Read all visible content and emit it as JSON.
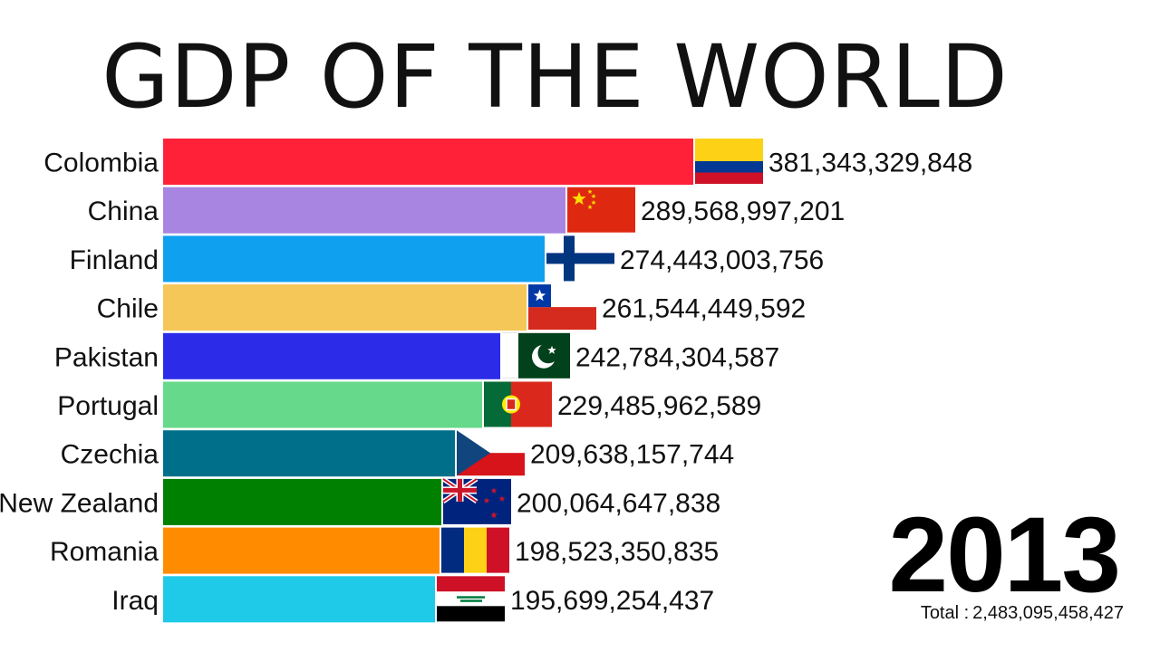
{
  "chart_data": {
    "type": "bar",
    "orientation": "horizontal",
    "title": "GDP OF THE WORLD",
    "year": "2013",
    "total_label": "Total :",
    "total_value": "2,483,095,458,427",
    "categories": [
      "Colombia",
      "China",
      "Finland",
      "Chile",
      "Pakistan",
      "Portugal",
      "Czechia",
      "New Zealand",
      "Romania",
      "Iraq"
    ],
    "values": [
      381343329848,
      289568997201,
      274443003756,
      261544449592,
      242784304587,
      229485962589,
      209638157744,
      200064647838,
      198523350835,
      195699254437
    ],
    "value_labels": [
      "381,343,329,848",
      "289,568,997,201",
      "274,443,003,756",
      "261,544,449,592",
      "242,784,304,587",
      "229,485,962,589",
      "209,638,157,744",
      "200,064,647,838",
      "198,523,350,835",
      "195,699,254,437"
    ],
    "colors": [
      "#ff2138",
      "#a885e0",
      "#10a0f0",
      "#f5c658",
      "#2b2be8",
      "#66d98b",
      "#00708a",
      "#008000",
      "#ff8c00",
      "#1ecae8"
    ],
    "flags": [
      "flag-colombia-icon",
      "flag-china-icon",
      "flag-finland-icon",
      "flag-chile-icon",
      "flag-pakistan-icon",
      "flag-portugal-icon",
      "flag-czechia-icon",
      "flag-new-zealand-icon",
      "flag-romania-icon",
      "flag-iraq-icon"
    ]
  }
}
